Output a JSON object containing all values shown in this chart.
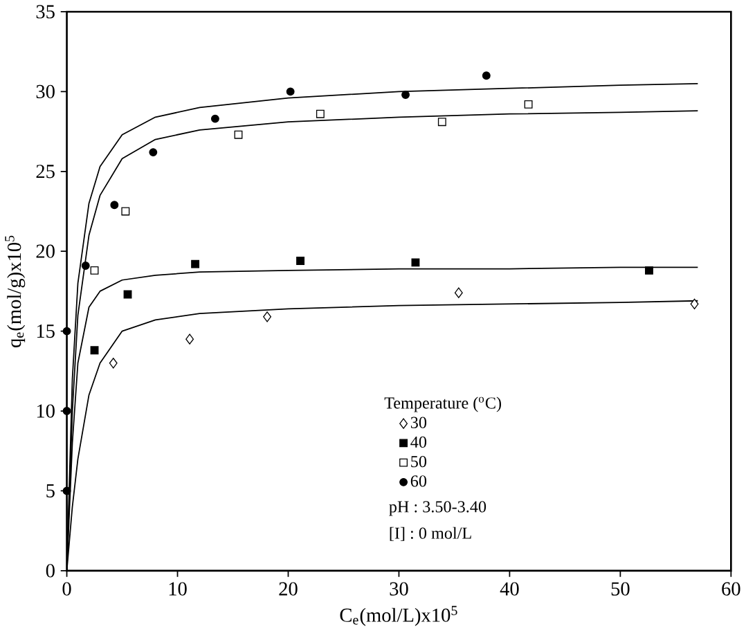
{
  "chart_data": {
    "type": "scatter",
    "xlabel": "C$_{e}$(mol/L)x10$^{5}$",
    "ylabel": "q$_{e}$(mol/g)x10$^{5}$",
    "legend_title": "Temperature ($^{o}$C)",
    "xlim": [
      0,
      60
    ],
    "ylim": [
      0,
      35
    ],
    "xticks": [
      0,
      10,
      20,
      30,
      40,
      50,
      60
    ],
    "yticks": [
      0,
      5,
      10,
      15,
      20,
      25,
      30,
      35
    ],
    "grid": false,
    "legend": "bottom right",
    "annotations": [
      "pH      :      3.50-3.40",
      "[I]       :      0 mol/L"
    ],
    "series": [
      {
        "name": "30",
        "marker": "diamond",
        "color": "#ffffff",
        "x": [
          4.2,
          11.1,
          18.1,
          35.4,
          56.7
        ],
        "values": [
          13.0,
          14.5,
          15.9,
          17.4,
          16.7
        ]
      },
      {
        "name": "40",
        "marker": "square",
        "color": "#000000",
        "x": [
          2.5,
          5.5,
          11.6,
          21.1,
          31.5,
          52.6
        ],
        "values": [
          13.8,
          17.3,
          19.2,
          19.4,
          19.3,
          18.8
        ]
      },
      {
        "name": "50",
        "marker": "square",
        "color": "#ffffff",
        "x": [
          2.5,
          5.3,
          15.5,
          22.9,
          33.9,
          41.7
        ],
        "values": [
          18.8,
          22.5,
          27.3,
          28.6,
          28.1,
          29.2
        ]
      },
      {
        "name": "60",
        "marker": "circle",
        "color": "#000000",
        "x": [
          0,
          0,
          0,
          1.7,
          4.3,
          7.8,
          13.4,
          20.2,
          30.6,
          37.9
        ],
        "values": [
          5,
          10,
          15,
          19.1,
          22.9,
          26.2,
          28.3,
          30.0,
          29.8,
          31.0
        ]
      },
      {
        "type": "line",
        "marker": "none",
        "color": "#000000",
        "x": [
          0,
          0.5,
          1,
          2,
          3,
          5,
          8,
          12,
          20,
          30,
          40,
          50,
          57
        ],
        "values": [
          0,
          4,
          7,
          11,
          13,
          15.0,
          15.7,
          16.1,
          16.4,
          16.6,
          16.7,
          16.8,
          16.9
        ]
      },
      {
        "type": "line",
        "marker": "none",
        "color": "#000000",
        "x": [
          0,
          0.5,
          1,
          2,
          3,
          5,
          8,
          12,
          20,
          30,
          40,
          50,
          57
        ],
        "values": [
          0,
          8,
          13,
          16.5,
          17.5,
          18.2,
          18.5,
          18.7,
          18.8,
          18.9,
          18.9,
          19.0,
          19.0
        ]
      },
      {
        "type": "line",
        "marker": "none",
        "color": "#000000",
        "x": [
          0,
          0.5,
          1,
          2,
          3,
          5,
          8,
          12,
          20,
          30,
          40,
          50,
          57
        ],
        "values": [
          0,
          10,
          16,
          21,
          23.5,
          25.8,
          27.0,
          27.6,
          28.1,
          28.4,
          28.6,
          28.7,
          28.8
        ]
      },
      {
        "type": "line",
        "marker": "none",
        "color": "#000000",
        "x": [
          0,
          0.5,
          1,
          2,
          3,
          5,
          8,
          12,
          20,
          30,
          40,
          50,
          57
        ],
        "values": [
          0,
          12,
          18,
          23,
          25.3,
          27.3,
          28.4,
          29.0,
          29.6,
          30.0,
          30.2,
          30.4,
          30.5
        ]
      }
    ]
  }
}
